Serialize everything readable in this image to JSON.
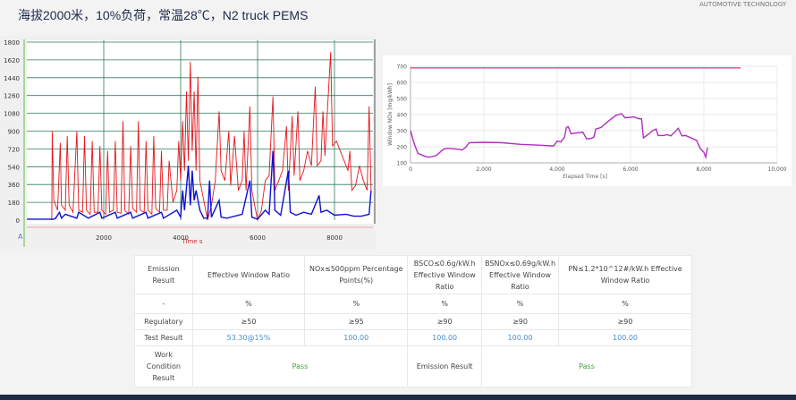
{
  "header": {
    "title": "海拔2000米，10%负荷，常温28℃，N2 truck PEMS",
    "watermark": "AUTOMOTIVE TECHNOLOGY"
  },
  "chart_data": [
    {
      "type": "line",
      "xlabel": "Time  s",
      "corner_label": "A",
      "xlim": [
        0,
        9000
      ],
      "ylim": [
        0,
        1800
      ],
      "x_ticks": [
        "2000",
        "4000",
        "6000",
        "8000"
      ],
      "x_tick_values": [
        2000,
        4000,
        6000,
        8000
      ],
      "y_ticks": [
        "0",
        "180",
        "360",
        "540",
        "720",
        "900",
        "1080",
        "1260",
        "1440",
        "1620",
        "1800"
      ],
      "y_tick_values": [
        0,
        180,
        360,
        540,
        720,
        900,
        1080,
        1260,
        1440,
        1620,
        1800
      ],
      "grid": true,
      "colors": {
        "red": "#e8141c",
        "blue": "#1010d8",
        "grid": "#2f7a5a"
      },
      "series": [
        {
          "color": "red",
          "x": [
            650,
            660,
            700,
            800,
            870,
            900,
            1000,
            1050,
            1100,
            1200,
            1300,
            1350,
            1450,
            1500,
            1550,
            1650,
            1700,
            1750,
            1850,
            1900,
            1950,
            2050,
            2100,
            2150,
            2250,
            2300,
            2350,
            2450,
            2500,
            2550,
            2650,
            2700,
            2750,
            2850,
            2900,
            2950,
            3050,
            3100,
            3150,
            3250,
            3300,
            3350,
            3450,
            3500,
            3550,
            3650,
            3700,
            3800,
            3900,
            3950,
            4000,
            4050,
            4100,
            4150,
            4200,
            4250,
            4300,
            4350,
            4400,
            4450,
            4500,
            4600,
            4700,
            4800,
            4900,
            5000,
            5050,
            5150,
            5250,
            5300,
            5400,
            5500,
            5600,
            5650,
            5700,
            5800,
            5850,
            5900,
            6000,
            6100,
            6200,
            6300,
            6400,
            6450,
            6550,
            6650,
            6750,
            6800,
            6900,
            6950,
            7050,
            7100,
            7200,
            7300,
            7400,
            7500,
            7550,
            7650,
            7700,
            7750,
            7900,
            7950,
            8050,
            8150,
            8250,
            8350,
            8400,
            8450,
            8550,
            8650,
            8750,
            8850,
            8900,
            8950
          ],
          "y": [
            0,
            900,
            200,
            100,
            780,
            150,
            100,
            850,
            150,
            80,
            900,
            100,
            80,
            850,
            100,
            60,
            800,
            80,
            80,
            750,
            100,
            60,
            700,
            80,
            100,
            800,
            80,
            70,
            1000,
            100,
            60,
            750,
            120,
            80,
            1000,
            100,
            80,
            800,
            100,
            60,
            850,
            120,
            80,
            700,
            100,
            100,
            600,
            180,
            300,
            800,
            400,
            1000,
            500,
            1300,
            600,
            1600,
            700,
            1300,
            500,
            1450,
            400,
            200,
            0,
            150,
            400,
            1100,
            500,
            400,
            900,
            350,
            850,
            300,
            400,
            900,
            300,
            1150,
            300,
            200,
            0,
            100,
            400,
            450,
            1250,
            300,
            400,
            500,
            950,
            300,
            1050,
            450,
            1100,
            400,
            500,
            700,
            550,
            1350,
            550,
            600,
            1100,
            650,
            1700,
            750,
            800,
            700,
            600,
            500,
            700,
            300,
            350,
            550,
            400,
            300,
            1150,
            300
          ]
        },
        {
          "color": "blue",
          "x": [
            0,
            700,
            750,
            850,
            900,
            1000,
            1300,
            1350,
            1600,
            1900,
            1950,
            2300,
            2350,
            2700,
            2750,
            3100,
            3150,
            3500,
            3550,
            3900,
            4000,
            4050,
            4100,
            4200,
            4250,
            4300,
            4350,
            4400,
            4500,
            4600,
            4700,
            4750,
            4800,
            5000,
            5050,
            5200,
            5600,
            5800,
            5850,
            6000,
            6200,
            6300,
            6400,
            6450,
            6600,
            6800,
            6850,
            7000,
            7200,
            7400,
            7600,
            7650,
            7800,
            8000,
            8300,
            8500,
            8700,
            8900,
            8950
          ],
          "y": [
            10,
            10,
            20,
            80,
            20,
            60,
            20,
            80,
            20,
            80,
            20,
            80,
            20,
            80,
            20,
            80,
            20,
            80,
            20,
            100,
            30,
            300,
            100,
            550,
            150,
            500,
            200,
            300,
            100,
            20,
            20,
            400,
            30,
            200,
            30,
            20,
            60,
            400,
            30,
            10,
            100,
            60,
            700,
            100,
            50,
            500,
            80,
            50,
            80,
            60,
            250,
            80,
            100,
            50,
            60,
            40,
            40,
            60,
            300
          ]
        }
      ]
    },
    {
      "type": "line",
      "xlabel": "Elapsed Time [s]",
      "ylabel": "Window NOx [mg/kWh]",
      "xlim": [
        0,
        10000
      ],
      "ylim": [
        100,
        700
      ],
      "x_ticks": [
        "0",
        "2,000",
        "4,000",
        "6,000",
        "8,000",
        "10,000"
      ],
      "x_tick_values": [
        0,
        2000,
        4000,
        6000,
        8000,
        10000
      ],
      "y_ticks": [
        "100",
        "200",
        "300",
        "400",
        "500",
        "600",
        "700"
      ],
      "y_tick_values": [
        100,
        200,
        300,
        400,
        500,
        600,
        700
      ],
      "grid": true,
      "limit_line": {
        "value": 690,
        "x": [
          0,
          9000
        ],
        "color": "#e8609a"
      },
      "series": [
        {
          "color": "#b030c0",
          "x": [
            0,
            100,
            200,
            400,
            500,
            700,
            900,
            1000,
            1300,
            1400,
            1500,
            1600,
            2000,
            2500,
            3000,
            3500,
            3900,
            4000,
            4100,
            4200,
            4250,
            4300,
            4380,
            4500,
            4700,
            4800,
            4900,
            5000,
            5050,
            5200,
            5400,
            5600,
            5750,
            5850,
            6100,
            6200,
            6300,
            6350,
            6500,
            6600,
            6700,
            6750,
            6900,
            7000,
            7100,
            7200,
            7300,
            7400,
            7500,
            7600,
            7800,
            7900,
            8000,
            8050,
            8100
          ],
          "y": [
            300,
            220,
            160,
            140,
            135,
            145,
            185,
            190,
            185,
            180,
            195,
            225,
            228,
            225,
            215,
            210,
            205,
            235,
            230,
            260,
            320,
            325,
            280,
            285,
            290,
            250,
            250,
            260,
            310,
            320,
            360,
            395,
            405,
            380,
            385,
            375,
            373,
            255,
            280,
            300,
            310,
            270,
            270,
            275,
            268,
            290,
            315,
            268,
            270,
            260,
            240,
            190,
            165,
            135,
            195
          ]
        }
      ]
    }
  ],
  "table": {
    "header": [
      "Emission Result",
      "Effective Window Ratio",
      "NOx≤500ppm Percentage Points(%)",
      "BSCO≤0.6g/kW.h Effective Window Ratio",
      "BSNOx≤0.69g/kW.h Effective Window Ratio",
      "PN≤1.2*10^12#/kW.h Effective Window Ratio"
    ],
    "units": [
      "-",
      "%",
      "%",
      "%",
      "%",
      "%"
    ],
    "regulatory": [
      "Regulatory",
      "≥50",
      "≥95",
      "≥90",
      "≥90",
      "≥90"
    ],
    "test_result": [
      "Test Result",
      "53.30@15%",
      "100.00",
      "100.00",
      "100.00",
      "100.00"
    ],
    "work_condition_label": "Work Condition Result",
    "work_condition_value": "Pass",
    "emission_result_label": "Emission Result",
    "emission_result_value": "Pass"
  }
}
